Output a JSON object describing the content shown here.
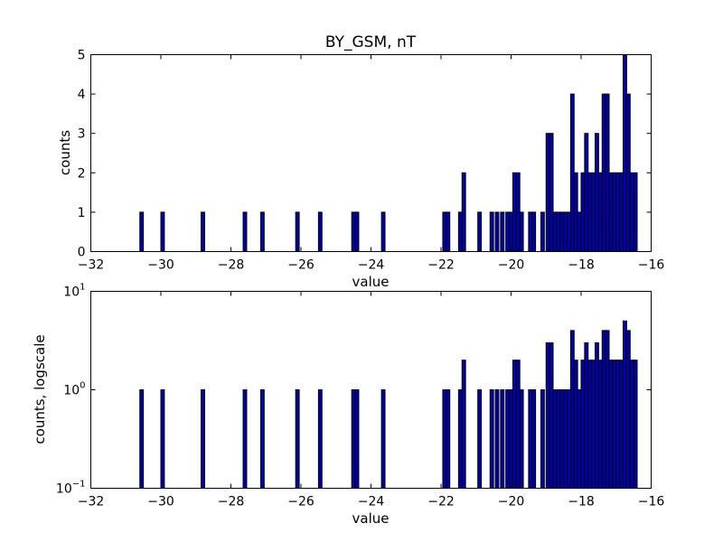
{
  "chart_data": [
    {
      "type": "bar",
      "title": "BY_GSM, nT",
      "xlabel": "value",
      "ylabel": "counts",
      "xlim": [
        -32,
        -16
      ],
      "ylim": [
        0,
        5
      ],
      "yscale": "linear",
      "xticks": [
        "−32",
        "−30",
        "−28",
        "−26",
        "−24",
        "−22",
        "−20",
        "−18",
        "−16"
      ],
      "yticks": [
        "0",
        "1",
        "2",
        "3",
        "4",
        "5"
      ],
      "bin_width": 0.1,
      "grid": false,
      "x": [
        -30.6,
        -30.0,
        -28.85,
        -27.65,
        -27.15,
        -26.15,
        -25.5,
        -24.55,
        -24.45,
        -23.7,
        -21.95,
        -21.85,
        -21.5,
        -21.4,
        -20.95,
        -20.6,
        -20.45,
        -20.3,
        -20.15,
        -20.05,
        -19.95,
        -19.85,
        -19.75,
        -19.5,
        -19.4,
        -19.15,
        -19.0,
        -18.9,
        -18.8,
        -18.7,
        -18.6,
        -18.5,
        -18.4,
        -18.3,
        -18.2,
        -18.1,
        -18.0,
        -17.9,
        -17.8,
        -17.7,
        -17.6,
        -17.5,
        -17.4,
        -17.3,
        -17.2,
        -17.1,
        -17.0,
        -16.9,
        -16.8,
        -16.7,
        -16.6,
        -16.5
      ],
      "counts": [
        1,
        1,
        1,
        1,
        1,
        1,
        1,
        1,
        1,
        1,
        1,
        1,
        1,
        2,
        1,
        1,
        1,
        1,
        1,
        1,
        2,
        2,
        1,
        1,
        1,
        1,
        3,
        3,
        1,
        1,
        1,
        1,
        1,
        4,
        2,
        1,
        2,
        3,
        2,
        2,
        3,
        2,
        4,
        4,
        2,
        2,
        2,
        2,
        5,
        4,
        2,
        2
      ]
    },
    {
      "type": "bar",
      "title": "",
      "xlabel": "value",
      "ylabel": "counts, logscale",
      "xlim": [
        -32,
        -16
      ],
      "ylim": [
        0.1,
        10
      ],
      "yscale": "log",
      "xticks": [
        "−32",
        "−30",
        "−28",
        "−26",
        "−24",
        "−22",
        "−20",
        "−18",
        "−16"
      ],
      "yticks": [
        {
          "base": "10",
          "exp": "−1"
        },
        {
          "base": "10",
          "exp": "0"
        },
        {
          "base": "10",
          "exp": "1"
        }
      ],
      "bin_width": 0.1,
      "grid": false,
      "x": [
        -30.6,
        -30.0,
        -28.85,
        -27.65,
        -27.15,
        -26.15,
        -25.5,
        -24.55,
        -24.45,
        -23.7,
        -21.95,
        -21.85,
        -21.5,
        -21.4,
        -20.95,
        -20.6,
        -20.45,
        -20.3,
        -20.15,
        -20.05,
        -19.95,
        -19.85,
        -19.75,
        -19.5,
        -19.4,
        -19.15,
        -19.0,
        -18.9,
        -18.8,
        -18.7,
        -18.6,
        -18.5,
        -18.4,
        -18.3,
        -18.2,
        -18.1,
        -18.0,
        -17.9,
        -17.8,
        -17.7,
        -17.6,
        -17.5,
        -17.4,
        -17.3,
        -17.2,
        -17.1,
        -17.0,
        -16.9,
        -16.8,
        -16.7,
        -16.6,
        -16.5
      ],
      "counts": [
        1,
        1,
        1,
        1,
        1,
        1,
        1,
        1,
        1,
        1,
        1,
        1,
        1,
        2,
        1,
        1,
        1,
        1,
        1,
        1,
        2,
        2,
        1,
        1,
        1,
        1,
        3,
        3,
        1,
        1,
        1,
        1,
        1,
        4,
        2,
        1,
        2,
        3,
        2,
        2,
        3,
        2,
        4,
        4,
        2,
        2,
        2,
        2,
        5,
        4,
        2,
        2
      ]
    }
  ]
}
